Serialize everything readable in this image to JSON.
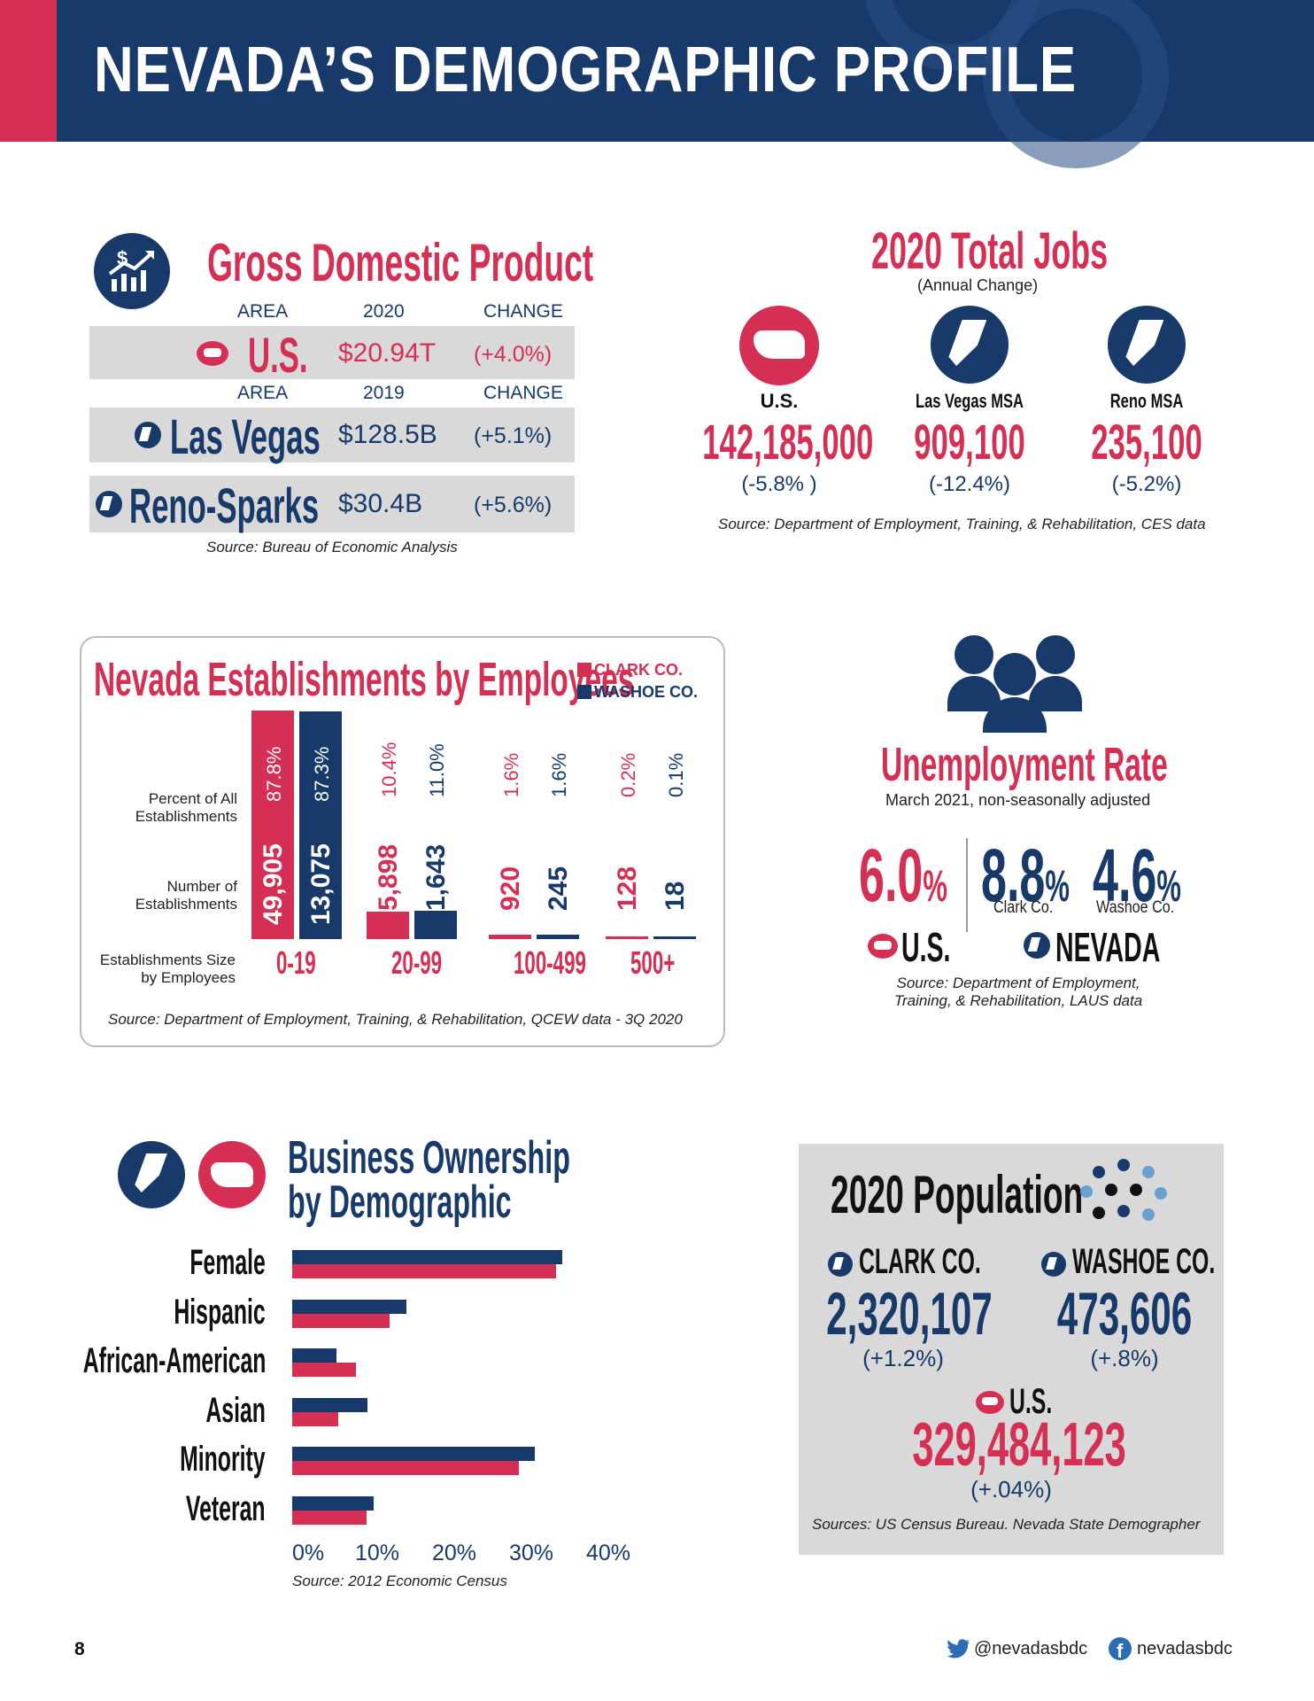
{
  "header": {
    "title": "NEVADA’S DEMOGRAPHIC PROFILE"
  },
  "gdp": {
    "title": "Gross Domestic Product",
    "col_area": "AREA",
    "col_2020": "2020",
    "col_change": "CHANGE",
    "col_area2": "AREA",
    "col_2019": "2019",
    "col_change2": "CHANGE",
    "rows": [
      {
        "area": "U.S.",
        "value": "$20.94T",
        "change": "(+4.0%)"
      },
      {
        "area": "Las Vegas",
        "value": "$128.5B",
        "change": "(+5.1%)"
      },
      {
        "area": "Reno-Sparks",
        "value": "$30.4B",
        "change": "(+5.6%)"
      }
    ],
    "source": "Source: Bureau of Economic Analysis"
  },
  "jobs": {
    "title": "2020 Total Jobs",
    "subtitle": "(Annual Change)",
    "items": [
      {
        "label": "U.S.",
        "value": "142,185,000",
        "change": "(-5.8% )"
      },
      {
        "label": "Las Vegas MSA",
        "value": "909,100",
        "change": "(-12.4%)"
      },
      {
        "label": "Reno MSA",
        "value": "235,100",
        "change": "(-5.2%)"
      }
    ],
    "source": "Source: Department of Employment, Training, & Rehabilitation, CES data"
  },
  "establishments": {
    "title": "Nevada Establishments by Employees",
    "legend_clark": "CLARK CO.",
    "legend_washoe": "WASHOE CO.",
    "row_percent": "Percent of All Establishments",
    "row_number": "Number of Establishments",
    "row_size": "Establishments Size by Employees",
    "source": "Source: Department of Employment, Training, & Rehabilitation, QCEW data - 3Q 2020",
    "groups": [
      {
        "label": "0-19",
        "clark_count": "49,905",
        "clark_pct": "87.8%",
        "washoe_count": "13,075",
        "washoe_pct": "87.3%",
        "clark_val": 87.8,
        "washoe_val": 87.3
      },
      {
        "label": "20-99",
        "clark_count": "5,898",
        "clark_pct": "10.4%",
        "washoe_count": "1,643",
        "washoe_pct": "11.0%",
        "clark_val": 10.4,
        "washoe_val": 11.0
      },
      {
        "label": "100-499",
        "clark_count": "920",
        "clark_pct": "1.6%",
        "washoe_count": "245",
        "washoe_pct": "1.6%",
        "clark_val": 1.6,
        "washoe_val": 1.6
      },
      {
        "label": "500+",
        "clark_count": "128",
        "clark_pct": "0.2%",
        "washoe_count": "18",
        "washoe_pct": "0.1%",
        "clark_val": 0.2,
        "washoe_val": 0.1
      }
    ]
  },
  "unemployment": {
    "title": "Unemployment Rate",
    "subtitle": "March 2021, non-seasonally adjusted",
    "us_value": "6.0",
    "us_label": "U.S.",
    "clark_value": "8.8",
    "clark_label": "Clark Co.",
    "washoe_value": "4.6",
    "washoe_label": "Washoe Co.",
    "nevada_label": "NEVADA",
    "pct": "%",
    "source_line1": "Source: Department of Employment,",
    "source_line2": "Training, & Rehabilitation, LAUS data"
  },
  "ownership": {
    "title_line1": "Business Ownership",
    "title_line2": "by Demographic",
    "source": "Source: 2012 Economic Census",
    "axis_ticks": [
      "0%",
      "10%",
      "20%",
      "30%",
      "40%"
    ]
  },
  "chart_data": {
    "type": "bar",
    "orientation": "horizontal",
    "categories": [
      "Female",
      "Hispanic",
      "African-American",
      "Asian",
      "Minority",
      "Veteran"
    ],
    "series": [
      {
        "values": [
          35,
          14.8,
          5.7,
          9.8,
          31.5,
          10.6
        ],
        "color": "#173a6b"
      },
      {
        "values": [
          34.3,
          12.7,
          8.3,
          6.0,
          29.4,
          9.6
        ],
        "color": "#d62f54"
      }
    ],
    "xlim": [
      0,
      40
    ],
    "xlabel": "",
    "ylabel": ""
  },
  "population": {
    "title": "2020 Population",
    "clark_label": "CLARK CO.",
    "clark_value": "2,320,107",
    "clark_change": "(+1.2%)",
    "washoe_label": "WASHOE CO.",
    "washoe_value": "473,606",
    "washoe_change": "(+.8%)",
    "us_label": "U.S.",
    "us_value": "329,484,123",
    "us_change": "(+.04%)",
    "source": "Sources: US Census Bureau. Nevada State Demographer"
  },
  "footer": {
    "page_number": "8",
    "twitter": "@nevadasbdc",
    "facebook": "nevadasbdc"
  },
  "colors": {
    "navy": "#173a6b",
    "red": "#d62f54",
    "gray": "#d9d9d9"
  }
}
